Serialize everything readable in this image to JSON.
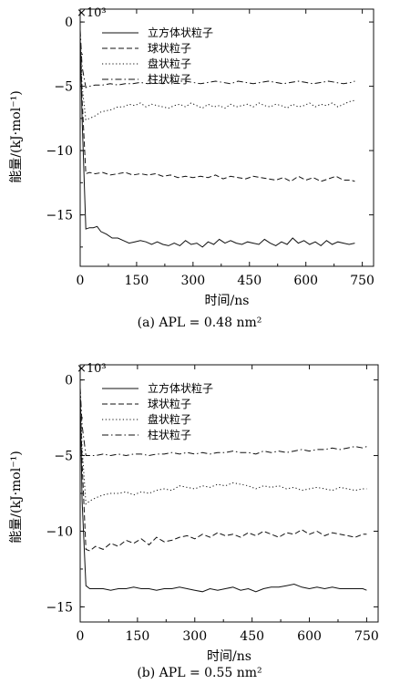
{
  "chart_data": [
    {
      "type": "line",
      "panel_label": "(a)",
      "caption": "(a) APL = 0.48 nm²",
      "multiplier": "×10³",
      "xlabel": "时间/ns",
      "ylabel": "能量/(kJ·mol⁻¹)",
      "xlim": [
        0,
        780
      ],
      "ylim": [
        -19,
        1
      ],
      "xticks": [
        0,
        150,
        300,
        450,
        600,
        750
      ],
      "yticks": [
        0,
        -5,
        -10,
        -15
      ],
      "legend_position": "top-right",
      "series": [
        {
          "name": "立方体状粒子",
          "style": "solid",
          "x": [
            0,
            5,
            15,
            25,
            35,
            45,
            55,
            70,
            85,
            100,
            115,
            130,
            145,
            160,
            175,
            190,
            205,
            220,
            235,
            250,
            265,
            280,
            295,
            310,
            325,
            340,
            355,
            370,
            385,
            400,
            415,
            430,
            445,
            460,
            475,
            490,
            505,
            520,
            535,
            550,
            565,
            580,
            595,
            610,
            625,
            640,
            655,
            670,
            685,
            700,
            715,
            730
          ],
          "y": [
            -1.2,
            -7.5,
            -16.1,
            -16.0,
            -16.0,
            -15.9,
            -16.3,
            -16.5,
            -16.8,
            -16.8,
            -17.0,
            -17.2,
            -17.1,
            -17.0,
            -17.1,
            -17.3,
            -17.1,
            -17.3,
            -17.4,
            -17.2,
            -17.4,
            -17.0,
            -17.3,
            -17.2,
            -17.5,
            -17.1,
            -17.3,
            -16.9,
            -17.2,
            -17.0,
            -17.2,
            -17.3,
            -17.1,
            -17.2,
            -17.3,
            -16.9,
            -17.2,
            -17.4,
            -17.1,
            -17.3,
            -16.8,
            -17.2,
            -17.0,
            -17.3,
            -17.1,
            -17.4,
            -17.0,
            -17.3,
            -17.1,
            -17.2,
            -17.3,
            -17.2
          ]
        },
        {
          "name": "球状粒子",
          "style": "dashed",
          "x": [
            0,
            5,
            15,
            25,
            40,
            60,
            80,
            100,
            120,
            140,
            160,
            180,
            200,
            220,
            240,
            260,
            280,
            300,
            320,
            340,
            360,
            380,
            400,
            420,
            440,
            460,
            480,
            500,
            520,
            540,
            560,
            580,
            600,
            620,
            640,
            660,
            680,
            700,
            720,
            730
          ],
          "y": [
            -1.0,
            -6.0,
            -11.8,
            -11.7,
            -11.8,
            -11.7,
            -11.9,
            -11.8,
            -11.7,
            -11.9,
            -11.8,
            -11.9,
            -11.8,
            -12.0,
            -11.9,
            -12.1,
            -12.0,
            -12.1,
            -12.0,
            -12.1,
            -11.9,
            -12.2,
            -12.0,
            -12.1,
            -12.2,
            -12.0,
            -12.1,
            -12.2,
            -12.3,
            -12.1,
            -12.4,
            -12.0,
            -12.3,
            -12.1,
            -12.4,
            -12.2,
            -12.0,
            -12.3,
            -12.3,
            -12.4
          ]
        },
        {
          "name": "盘状粒子",
          "style": "dotted",
          "x": [
            0,
            5,
            15,
            25,
            40,
            55,
            70,
            85,
            100,
            115,
            130,
            145,
            160,
            175,
            190,
            205,
            220,
            235,
            250,
            265,
            280,
            295,
            310,
            325,
            340,
            355,
            370,
            385,
            400,
            415,
            430,
            445,
            460,
            475,
            490,
            505,
            520,
            535,
            550,
            565,
            580,
            595,
            610,
            625,
            640,
            655,
            670,
            685,
            700,
            715,
            730
          ],
          "y": [
            -0.8,
            -5.0,
            -7.6,
            -7.5,
            -7.3,
            -7.0,
            -6.9,
            -6.8,
            -6.6,
            -6.6,
            -6.4,
            -6.5,
            -6.3,
            -6.6,
            -6.4,
            -6.5,
            -6.6,
            -6.7,
            -6.5,
            -6.4,
            -6.6,
            -6.3,
            -6.5,
            -6.7,
            -6.4,
            -6.6,
            -6.5,
            -6.7,
            -6.4,
            -6.6,
            -6.5,
            -6.4,
            -6.6,
            -6.3,
            -6.5,
            -6.6,
            -6.4,
            -6.5,
            -6.7,
            -6.4,
            -6.6,
            -6.5,
            -6.3,
            -6.6,
            -6.4,
            -6.5,
            -6.3,
            -6.6,
            -6.4,
            -6.2,
            -6.1
          ]
        },
        {
          "name": "柱状粒子",
          "style": "dashdot",
          "x": [
            0,
            5,
            15,
            25,
            40,
            60,
            80,
            100,
            120,
            140,
            160,
            180,
            200,
            220,
            240,
            260,
            280,
            300,
            320,
            340,
            360,
            380,
            400,
            420,
            440,
            460,
            480,
            500,
            520,
            540,
            560,
            580,
            600,
            620,
            640,
            660,
            680,
            700,
            720,
            730
          ],
          "y": [
            -0.6,
            -3.5,
            -5.1,
            -5.0,
            -4.9,
            -4.9,
            -4.8,
            -4.9,
            -4.8,
            -4.8,
            -4.7,
            -4.8,
            -4.7,
            -4.8,
            -4.7,
            -4.6,
            -4.6,
            -4.7,
            -4.8,
            -4.7,
            -4.6,
            -4.7,
            -4.8,
            -4.6,
            -4.7,
            -4.8,
            -4.7,
            -4.6,
            -4.7,
            -4.8,
            -4.7,
            -4.6,
            -4.7,
            -4.8,
            -4.7,
            -4.6,
            -4.7,
            -4.8,
            -4.7,
            -4.6
          ]
        }
      ]
    },
    {
      "type": "line",
      "panel_label": "(b)",
      "caption": "(b) APL = 0.55 nm²",
      "multiplier": "×10³",
      "xlabel": "时间/ns",
      "ylabel": "能量/(kJ·mol⁻¹)",
      "xlim": [
        0,
        780
      ],
      "ylim": [
        -16,
        1
      ],
      "xticks": [
        0,
        150,
        300,
        450,
        600,
        750
      ],
      "yticks": [
        0,
        -5,
        -10,
        -15
      ],
      "legend_position": "top-right",
      "series": [
        {
          "name": "立方体状粒子",
          "style": "solid",
          "x": [
            0,
            5,
            15,
            25,
            40,
            60,
            80,
            100,
            120,
            140,
            160,
            180,
            200,
            220,
            240,
            260,
            280,
            300,
            320,
            340,
            360,
            380,
            400,
            420,
            440,
            460,
            480,
            500,
            520,
            540,
            560,
            580,
            600,
            620,
            640,
            660,
            680,
            700,
            720,
            740,
            750
          ],
          "y": [
            -1.0,
            -8.0,
            -13.6,
            -13.8,
            -13.8,
            -13.8,
            -13.9,
            -13.8,
            -13.8,
            -13.7,
            -13.8,
            -13.8,
            -13.9,
            -13.8,
            -13.8,
            -13.7,
            -13.8,
            -13.9,
            -14.0,
            -13.8,
            -13.9,
            -13.8,
            -13.7,
            -13.9,
            -13.8,
            -14.0,
            -13.8,
            -13.7,
            -13.7,
            -13.6,
            -13.5,
            -13.7,
            -13.8,
            -13.7,
            -13.8,
            -13.7,
            -13.8,
            -13.8,
            -13.8,
            -13.8,
            -13.9
          ]
        },
        {
          "name": "球状粒子",
          "style": "dashed",
          "x": [
            0,
            5,
            15,
            25,
            40,
            60,
            80,
            100,
            120,
            140,
            160,
            180,
            200,
            220,
            240,
            260,
            280,
            300,
            320,
            340,
            360,
            380,
            400,
            420,
            440,
            460,
            480,
            500,
            520,
            540,
            560,
            580,
            600,
            620,
            640,
            660,
            680,
            700,
            720,
            740,
            750
          ],
          "y": [
            -0.8,
            -5.5,
            -11.2,
            -11.3,
            -11.0,
            -11.2,
            -10.8,
            -11.0,
            -10.6,
            -10.8,
            -10.5,
            -10.9,
            -10.4,
            -10.7,
            -10.6,
            -10.4,
            -10.3,
            -10.5,
            -10.2,
            -10.4,
            -10.1,
            -10.3,
            -10.2,
            -10.4,
            -10.1,
            -10.3,
            -10.0,
            -10.2,
            -10.4,
            -10.1,
            -10.2,
            -9.9,
            -10.2,
            -10.0,
            -10.3,
            -10.1,
            -10.2,
            -10.3,
            -10.4,
            -10.2,
            -10.2
          ]
        },
        {
          "name": "盘状粒子",
          "style": "dotted",
          "x": [
            0,
            5,
            15,
            25,
            40,
            60,
            80,
            100,
            120,
            140,
            160,
            180,
            200,
            220,
            240,
            260,
            280,
            300,
            320,
            340,
            360,
            380,
            400,
            420,
            440,
            460,
            480,
            500,
            520,
            540,
            560,
            580,
            600,
            620,
            640,
            660,
            680,
            700,
            720,
            740,
            750
          ],
          "y": [
            -0.6,
            -4.5,
            -8.2,
            -8.0,
            -7.8,
            -7.6,
            -7.5,
            -7.5,
            -7.4,
            -7.6,
            -7.4,
            -7.5,
            -7.3,
            -7.2,
            -7.3,
            -7.0,
            -7.1,
            -7.2,
            -7.0,
            -7.1,
            -6.9,
            -7.0,
            -6.8,
            -6.9,
            -7.0,
            -7.2,
            -7.0,
            -7.1,
            -7.0,
            -7.2,
            -7.1,
            -7.3,
            -7.2,
            -7.1,
            -7.2,
            -7.3,
            -7.1,
            -7.2,
            -7.3,
            -7.2,
            -7.2
          ]
        },
        {
          "name": "柱状粒子",
          "style": "dashdot",
          "x": [
            0,
            5,
            15,
            25,
            40,
            60,
            80,
            100,
            120,
            140,
            160,
            180,
            200,
            220,
            240,
            260,
            280,
            300,
            320,
            340,
            360,
            380,
            400,
            420,
            440,
            460,
            480,
            500,
            520,
            540,
            560,
            580,
            600,
            620,
            640,
            660,
            680,
            700,
            720,
            740,
            750
          ],
          "y": [
            -0.5,
            -3.0,
            -5.0,
            -5.0,
            -5.0,
            -4.9,
            -5.0,
            -4.9,
            -5.0,
            -4.9,
            -4.9,
            -5.0,
            -4.9,
            -4.9,
            -4.8,
            -4.9,
            -4.8,
            -4.9,
            -4.8,
            -4.9,
            -4.8,
            -4.8,
            -4.7,
            -4.8,
            -4.8,
            -4.9,
            -4.7,
            -4.8,
            -4.7,
            -4.8,
            -4.7,
            -4.6,
            -4.7,
            -4.6,
            -4.6,
            -4.5,
            -4.6,
            -4.5,
            -4.4,
            -4.5,
            -4.4
          ]
        }
      ]
    }
  ]
}
